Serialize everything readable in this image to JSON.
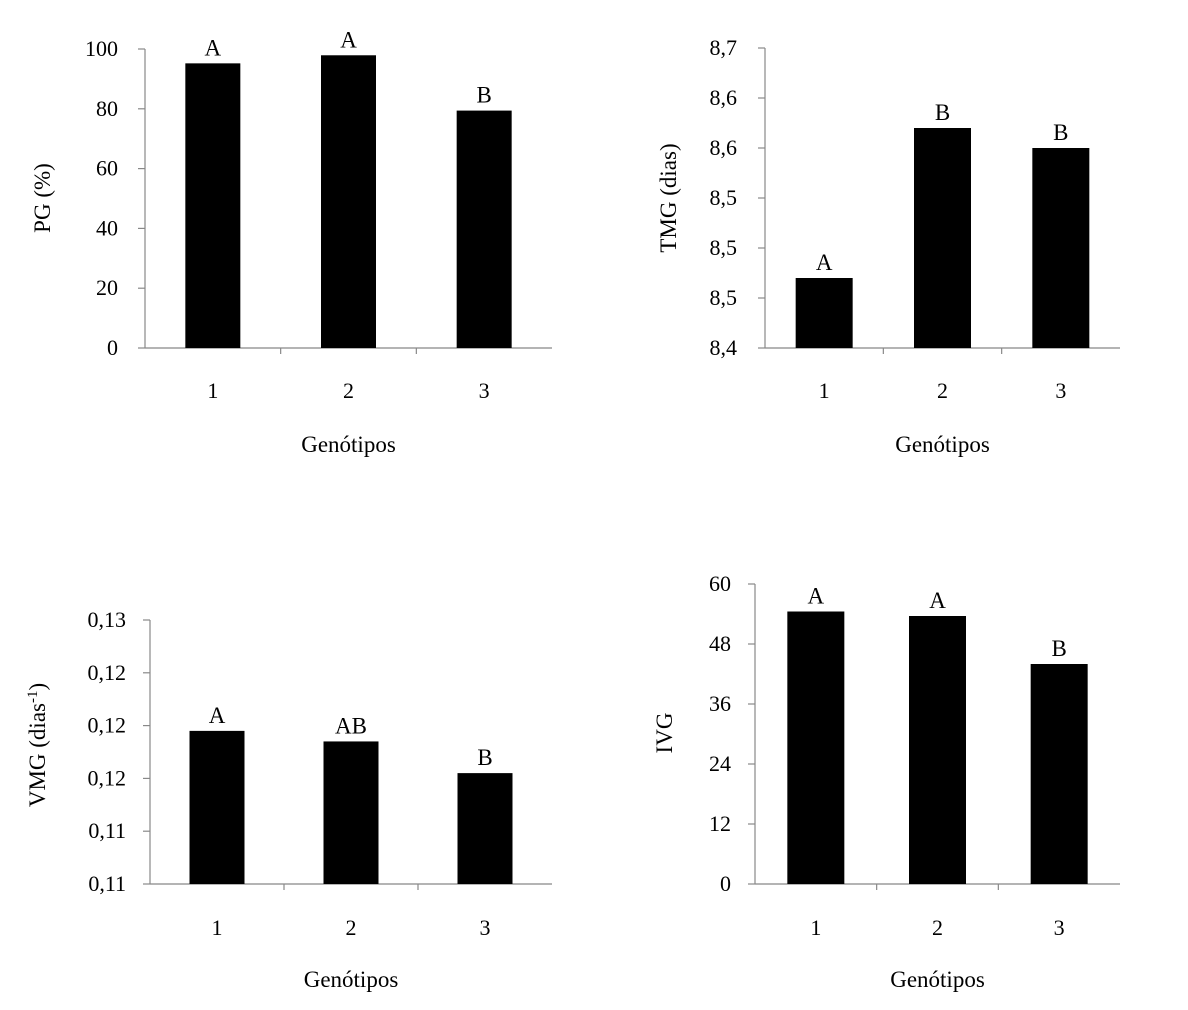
{
  "chart_data": [
    {
      "type": "bar",
      "categories": [
        "1",
        "2",
        "3"
      ],
      "values": [
        95.2,
        97.9,
        79.4
      ],
      "significance": [
        "A",
        "A",
        "B"
      ],
      "xlabel": "Genótipos",
      "ylabel": "PG (%)",
      "ylim": [
        0,
        100
      ],
      "yticks": [
        "0",
        "20",
        "40",
        "60",
        "80",
        "100"
      ],
      "bar_color": "#000000",
      "grid": false
    },
    {
      "type": "bar",
      "categories": [
        "1",
        "2",
        "3"
      ],
      "values": [
        8.47,
        8.62,
        8.6
      ],
      "significance": [
        "A",
        "B",
        "B"
      ],
      "xlabel": "Genótipos",
      "ylabel": "TMG (dias)",
      "ylim": [
        8.4,
        8.7
      ],
      "yticks": [
        "8,4",
        "8,5",
        "8,5",
        "8,5",
        "8,6",
        "8,6",
        "8,7"
      ],
      "bar_color": "#000000",
      "grid": false
    },
    {
      "type": "bar",
      "categories": [
        "1",
        "2",
        "3"
      ],
      "values": [
        0.1164,
        0.1162,
        0.1156
      ],
      "significance": [
        "A",
        "AB",
        "B"
      ],
      "xlabel": "Genótipos",
      "ylabel": "VMG (dias",
      "ylabel_superscript": "-1",
      "ylabel_suffix": ")",
      "ylim": [
        0.1135,
        0.1185
      ],
      "yticks": [
        "0,11",
        "0,11",
        "0,12",
        "0,12",
        "0,12",
        "0,13"
      ],
      "bar_color": "#000000",
      "grid": false
    },
    {
      "type": "bar",
      "categories": [
        "1",
        "2",
        "3"
      ],
      "values": [
        54.5,
        53.6,
        44.0
      ],
      "significance": [
        "A",
        "A",
        "B"
      ],
      "xlabel": "Genótipos",
      "ylabel": "IVG",
      "ylim": [
        0,
        60
      ],
      "yticks": [
        "0",
        "12",
        "24",
        "36",
        "48",
        "60"
      ],
      "bar_color": "#000000",
      "grid": false
    }
  ]
}
